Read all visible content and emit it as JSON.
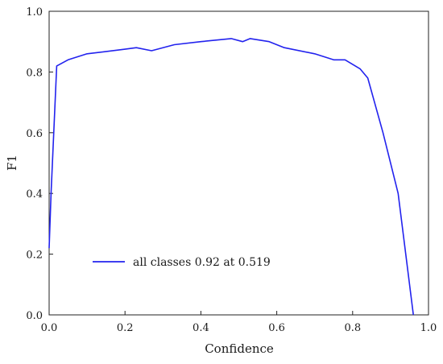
{
  "chart_data": {
    "type": "line",
    "title": "",
    "xlabel": "Confidence",
    "ylabel": "F1",
    "xlim": [
      0.0,
      1.0
    ],
    "ylim": [
      0.0,
      1.0
    ],
    "xticks": [
      0.0,
      0.2,
      0.4,
      0.6,
      0.8,
      1.0
    ],
    "yticks": [
      0.0,
      0.2,
      0.4,
      0.6,
      0.8,
      1.0
    ],
    "xtick_labels": [
      "0.0",
      "0.2",
      "0.4",
      "0.6",
      "0.8",
      "1.0"
    ],
    "ytick_labels": [
      "0.0",
      "0.2",
      "0.4",
      "0.6",
      "0.8",
      "1.0"
    ],
    "grid": false,
    "legend_position": "bottom-center",
    "series": [
      {
        "name": "all classes 0.92 at 0.519",
        "color": "#2222ee",
        "x": [
          0.0,
          0.005,
          0.02,
          0.05,
          0.1,
          0.2,
          0.23,
          0.27,
          0.33,
          0.4,
          0.48,
          0.51,
          0.53,
          0.58,
          0.62,
          0.7,
          0.75,
          0.78,
          0.82,
          0.84,
          0.88,
          0.92,
          0.96
        ],
        "y": [
          0.22,
          0.4,
          0.82,
          0.84,
          0.86,
          0.875,
          0.88,
          0.87,
          0.89,
          0.9,
          0.91,
          0.9,
          0.91,
          0.9,
          0.88,
          0.86,
          0.84,
          0.84,
          0.81,
          0.78,
          0.6,
          0.4,
          0.0
        ]
      }
    ]
  }
}
